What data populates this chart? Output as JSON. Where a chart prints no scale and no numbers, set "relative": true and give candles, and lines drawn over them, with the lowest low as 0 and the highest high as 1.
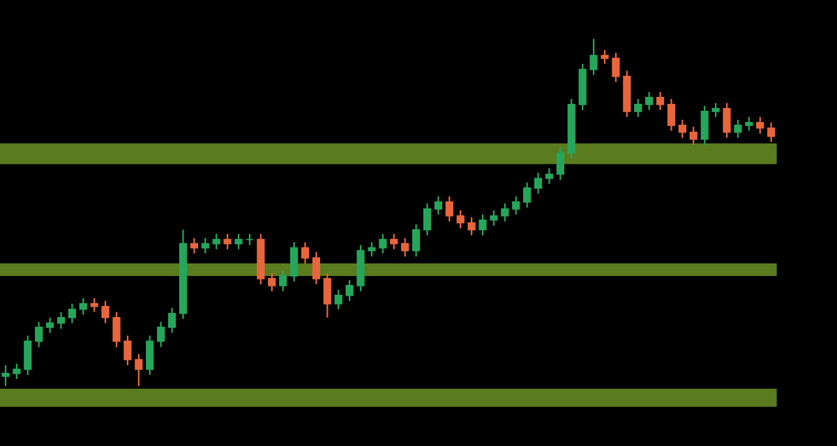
{
  "chart_data": {
    "type": "candlestick",
    "relative": true,
    "categories": [
      null,
      null,
      null,
      null,
      null,
      null,
      null,
      null,
      null,
      null,
      null,
      null,
      null,
      null,
      null,
      null,
      null,
      null,
      null,
      null,
      null,
      null,
      null,
      null,
      null,
      null,
      null,
      null,
      null,
      null,
      null,
      null,
      null,
      null,
      null,
      null,
      null,
      null,
      null,
      null,
      null,
      null,
      null,
      null,
      null,
      null,
      null,
      null,
      null,
      null,
      null,
      null,
      null,
      null,
      null,
      null,
      null,
      null,
      null,
      null,
      null,
      null,
      null,
      null,
      null,
      null,
      null,
      null,
      null,
      null
    ],
    "ohlc": [
      [
        0.028,
        0.06,
        0,
        0.036
      ],
      [
        0.036,
        0.064,
        0.02,
        0.048
      ],
      [
        0.048,
        0.145,
        0.032,
        0.129
      ],
      [
        0.129,
        0.185,
        0.112,
        0.169
      ],
      [
        0.169,
        0.197,
        0.153,
        0.181
      ],
      [
        0.181,
        0.213,
        0.165,
        0.197
      ],
      [
        0.197,
        0.237,
        0.181,
        0.221
      ],
      [
        0.221,
        0.253,
        0.205,
        0.237
      ],
      [
        0.237,
        0.253,
        0.213,
        0.229
      ],
      [
        0.229,
        0.245,
        0.181,
        0.197
      ],
      [
        0.197,
        0.213,
        0.112,
        0.129
      ],
      [
        0.129,
        0.145,
        0.06,
        0.076
      ],
      [
        0.076,
        0.092,
        0,
        0.048
      ],
      [
        0.048,
        0.145,
        0.032,
        0.129
      ],
      [
        0.129,
        0.185,
        0.112,
        0.169
      ],
      [
        0.169,
        0.225,
        0.153,
        0.209
      ],
      [
        0.209,
        0.45,
        0.193,
        0.41
      ],
      [
        0.41,
        0.426,
        0.382,
        0.398
      ],
      [
        0.398,
        0.426,
        0.382,
        0.41
      ],
      [
        0.41,
        0.438,
        0.394,
        0.422
      ],
      [
        0.422,
        0.438,
        0.394,
        0.41
      ],
      [
        0.41,
        0.438,
        0.394,
        0.422
      ],
      [
        0.422,
        0.438,
        0.406,
        0.422
      ],
      [
        0.422,
        0.438,
        0.293,
        0.309
      ],
      [
        0.309,
        0.325,
        0.273,
        0.289
      ],
      [
        0.289,
        0.333,
        0.273,
        0.317
      ],
      [
        0.317,
        0.414,
        0.301,
        0.398
      ],
      [
        0.398,
        0.414,
        0.353,
        0.369
      ],
      [
        0.369,
        0.386,
        0.293,
        0.309
      ],
      [
        0.309,
        0.325,
        0.197,
        0.237
      ],
      [
        0.237,
        0.277,
        0.221,
        0.261
      ],
      [
        0.261,
        0.305,
        0.245,
        0.289
      ],
      [
        0.289,
        0.406,
        0.273,
        0.39
      ],
      [
        0.39,
        0.414,
        0.373,
        0.398
      ],
      [
        0.398,
        0.438,
        0.382,
        0.422
      ],
      [
        0.422,
        0.438,
        0.394,
        0.41
      ],
      [
        0.41,
        0.426,
        0.373,
        0.39
      ],
      [
        0.39,
        0.466,
        0.373,
        0.45
      ],
      [
        0.45,
        0.526,
        0.434,
        0.51
      ],
      [
        0.51,
        0.546,
        0.494,
        0.53
      ],
      [
        0.53,
        0.546,
        0.474,
        0.49
      ],
      [
        0.49,
        0.506,
        0.454,
        0.47
      ],
      [
        0.47,
        0.486,
        0.434,
        0.45
      ],
      [
        0.45,
        0.494,
        0.434,
        0.478
      ],
      [
        0.478,
        0.506,
        0.462,
        0.49
      ],
      [
        0.49,
        0.526,
        0.474,
        0.51
      ],
      [
        0.51,
        0.546,
        0.494,
        0.53
      ],
      [
        0.53,
        0.586,
        0.514,
        0.57
      ],
      [
        0.57,
        0.614,
        0.554,
        0.598
      ],
      [
        0.598,
        0.627,
        0.582,
        0.61
      ],
      [
        0.61,
        0.687,
        0.594,
        0.671
      ],
      [
        0.671,
        0.827,
        0.655,
        0.811
      ],
      [
        0.811,
        0.928,
        0.795,
        0.912
      ],
      [
        0.912,
        1,
        0.896,
        0.952
      ],
      [
        0.952,
        0.968,
        0.928,
        0.944
      ],
      [
        0.944,
        0.96,
        0.876,
        0.892
      ],
      [
        0.892,
        0.908,
        0.775,
        0.791
      ],
      [
        0.791,
        0.827,
        0.775,
        0.811
      ],
      [
        0.811,
        0.847,
        0.795,
        0.831
      ],
      [
        0.831,
        0.847,
        0.795,
        0.811
      ],
      [
        0.811,
        0.827,
        0.735,
        0.751
      ],
      [
        0.751,
        0.767,
        0.715,
        0.731
      ],
      [
        0.731,
        0.747,
        0.695,
        0.711
      ],
      [
        0.711,
        0.807,
        0.695,
        0.791
      ],
      [
        0.791,
        0.815,
        0.775,
        0.799
      ],
      [
        0.799,
        0.815,
        0.715,
        0.731
      ],
      [
        0.731,
        0.767,
        0.715,
        0.751
      ],
      [
        0.751,
        0.775,
        0.735,
        0.759
      ],
      [
        0.759,
        0.775,
        0.727,
        0.743
      ],
      [
        0.743,
        0.759,
        0.703,
        0.719
      ]
    ],
    "colors": [
      "#26a65b",
      "#26a65b",
      "#26a65b",
      "#26a65b",
      "#26a65b",
      "#26a65b",
      "#26a65b",
      "#26a65b",
      "#e8663c",
      "#e8663c",
      "#e8663c",
      "#e8663c",
      "#e8663c",
      "#26a65b",
      "#26a65b",
      "#26a65b",
      "#26a65b",
      "#e8663c",
      "#26a65b",
      "#26a65b",
      "#e8663c",
      "#26a65b",
      "#26a65b",
      "#e8663c",
      "#e8663c",
      "#26a65b",
      "#26a65b",
      "#e8663c",
      "#e8663c",
      "#e8663c",
      "#26a65b",
      "#26a65b",
      "#26a65b",
      "#26a65b",
      "#26a65b",
      "#e8663c",
      "#e8663c",
      "#26a65b",
      "#26a65b",
      "#26a65b",
      "#e8663c",
      "#e8663c",
      "#e8663c",
      "#26a65b",
      "#26a65b",
      "#26a65b",
      "#26a65b",
      "#26a65b",
      "#26a65b",
      "#26a65b",
      "#26a65b",
      "#26a65b",
      "#26a65b",
      "#26a65b",
      "#e8663c",
      "#e8663c",
      "#e8663c",
      "#26a65b",
      "#26a65b",
      "#e8663c",
      "#e8663c",
      "#e8663c",
      "#e8663c",
      "#26a65b",
      "#26a65b",
      "#e8663c",
      "#26a65b",
      "#26a65b",
      "#e8663c",
      "#e8663c"
    ],
    "bands": [
      {
        "axis": "y",
        "from": -0.06,
        "to": -0.008,
        "color": "#5b7b1f"
      },
      {
        "axis": "y",
        "from": 0.317,
        "to": 0.353,
        "color": "#5b7b1f"
      },
      {
        "axis": "y",
        "from": 0.639,
        "to": 0.699,
        "color": "#5b7b1f"
      }
    ]
  }
}
